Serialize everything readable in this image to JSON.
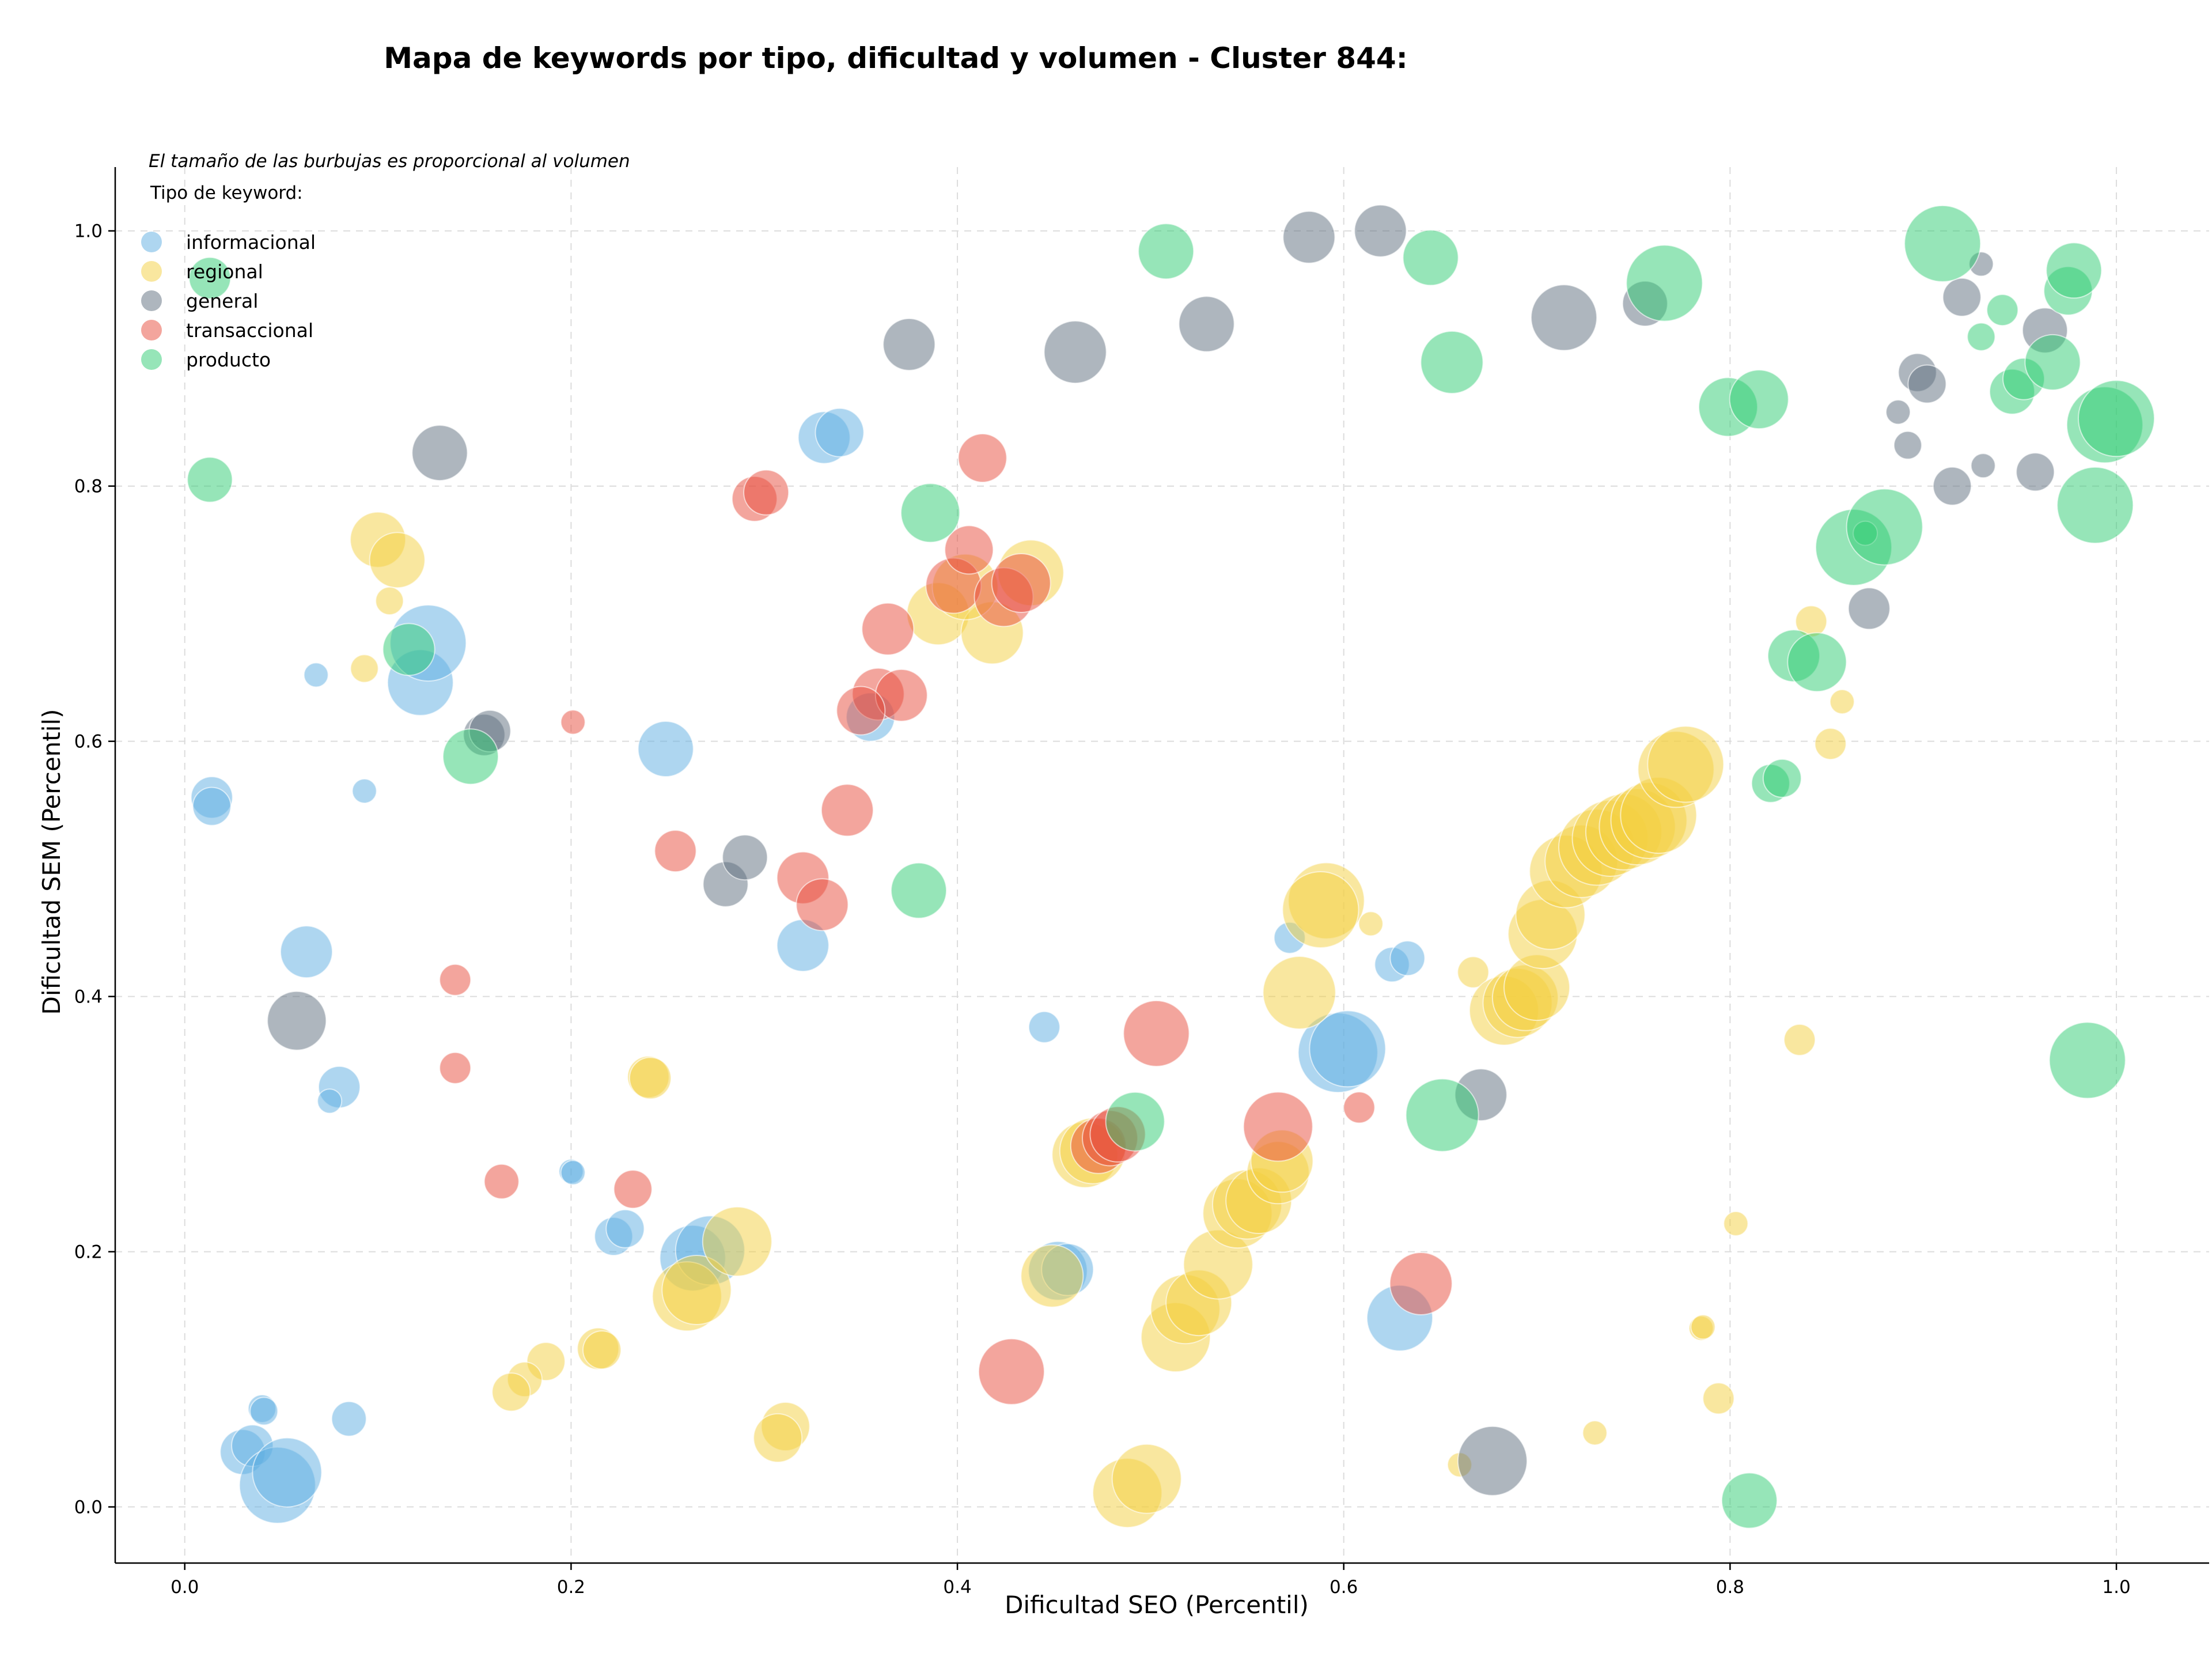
{
  "chart_data": {
    "type": "scatter",
    "title": "Mapa de keywords por tipo, dificultad y volumen - Cluster 844:",
    "xlabel": "Dificultad SEO (Percentil)",
    "ylabel": "Dificultad SEM (Percentil)",
    "xlim": [
      -0.036,
      1.048
    ],
    "ylim": [
      -0.044,
      1.05
    ],
    "xticks": [
      0.0,
      0.2,
      0.4,
      0.6,
      0.8,
      1.0
    ],
    "yticks": [
      0.0,
      0.2,
      0.4,
      0.6,
      0.8,
      1.0
    ],
    "xtick_labels": [
      "0.0",
      "0.2",
      "0.4",
      "0.6",
      "0.8",
      "1.0"
    ],
    "ytick_labels": [
      "0.0",
      "0.2",
      "0.4",
      "0.6",
      "0.8",
      "1.0"
    ],
    "grid": true,
    "annotation": "El tamaño de las burbujas es proporcional al volumen",
    "legend": {
      "title": "Tipo de keyword:",
      "placement": "top-left"
    },
    "series": [
      {
        "name": "informacional",
        "color": "#5dade2",
        "points": [
          [
            0.068,
            0.652,
            7
          ],
          [
            0.093,
            0.561,
            7
          ],
          [
            0.014,
            0.556,
            12
          ],
          [
            0.014,
            0.549,
            11
          ],
          [
            0.063,
            0.435,
            15
          ],
          [
            0.08,
            0.329,
            12
          ],
          [
            0.075,
            0.318,
            7
          ],
          [
            0.04,
            0.077,
            8
          ],
          [
            0.041,
            0.075,
            8
          ],
          [
            0.085,
            0.069,
            10
          ],
          [
            0.03,
            0.043,
            13
          ],
          [
            0.035,
            0.048,
            12
          ],
          [
            0.048,
            0.017,
            22
          ],
          [
            0.053,
            0.027,
            20
          ],
          [
            0.2,
            0.263,
            7
          ],
          [
            0.201,
            0.262,
            7
          ],
          [
            0.222,
            0.212,
            11
          ],
          [
            0.228,
            0.218,
            11
          ],
          [
            0.263,
            0.195,
            19
          ],
          [
            0.272,
            0.201,
            20
          ],
          [
            0.122,
            0.646,
            19
          ],
          [
            0.126,
            0.677,
            22
          ],
          [
            0.249,
            0.594,
            16
          ],
          [
            0.331,
            0.838,
            15
          ],
          [
            0.339,
            0.842,
            14
          ],
          [
            0.355,
            0.619,
            14
          ],
          [
            0.32,
            0.44,
            15
          ],
          [
            0.445,
            0.376,
            9
          ],
          [
            0.452,
            0.185,
            17
          ],
          [
            0.457,
            0.186,
            15
          ],
          [
            0.572,
            0.446,
            9
          ],
          [
            0.597,
            0.356,
            23
          ],
          [
            0.602,
            0.359,
            22
          ],
          [
            0.625,
            0.425,
            10
          ],
          [
            0.633,
            0.43,
            10
          ],
          [
            0.629,
            0.148,
            19
          ]
        ]
      },
      {
        "name": "regional",
        "color": "#f4d03f",
        "points": [
          [
            0.1,
            0.758,
            16
          ],
          [
            0.11,
            0.742,
            16
          ],
          [
            0.106,
            0.71,
            8
          ],
          [
            0.093,
            0.657,
            8
          ],
          [
            0.24,
            0.337,
            12
          ],
          [
            0.241,
            0.336,
            12
          ],
          [
            0.214,
            0.124,
            12
          ],
          [
            0.216,
            0.123,
            11
          ],
          [
            0.187,
            0.114,
            11
          ],
          [
            0.176,
            0.1,
            10
          ],
          [
            0.169,
            0.09,
            11
          ],
          [
            0.26,
            0.165,
            20
          ],
          [
            0.265,
            0.17,
            20
          ],
          [
            0.286,
            0.208,
            20
          ],
          [
            0.311,
            0.063,
            14
          ],
          [
            0.307,
            0.054,
            14
          ],
          [
            0.39,
            0.7,
            18
          ],
          [
            0.418,
            0.685,
            18
          ],
          [
            0.438,
            0.732,
            19
          ],
          [
            0.404,
            0.721,
            19
          ],
          [
            0.466,
            0.276,
            19
          ],
          [
            0.47,
            0.279,
            19
          ],
          [
            0.449,
            0.181,
            18
          ],
          [
            0.488,
            0.011,
            20
          ],
          [
            0.498,
            0.022,
            20
          ],
          [
            0.513,
            0.133,
            20
          ],
          [
            0.518,
            0.155,
            20
          ],
          [
            0.525,
            0.16,
            19
          ],
          [
            0.535,
            0.19,
            20
          ],
          [
            0.545,
            0.23,
            20
          ],
          [
            0.55,
            0.237,
            20
          ],
          [
            0.556,
            0.24,
            19
          ],
          [
            0.566,
            0.262,
            18
          ],
          [
            0.568,
            0.271,
            18
          ],
          [
            0.591,
            0.475,
            22
          ],
          [
            0.588,
            0.468,
            22
          ],
          [
            0.577,
            0.403,
            21
          ],
          [
            0.614,
            0.457,
            7
          ],
          [
            0.667,
            0.419,
            9
          ],
          [
            0.66,
            0.033,
            7
          ],
          [
            0.683,
            0.389,
            20
          ],
          [
            0.69,
            0.395,
            20
          ],
          [
            0.694,
            0.399,
            19
          ],
          [
            0.7,
            0.407,
            19
          ],
          [
            0.703,
            0.449,
            20
          ],
          [
            0.707,
            0.464,
            20
          ],
          [
            0.715,
            0.498,
            21
          ],
          [
            0.723,
            0.506,
            21
          ],
          [
            0.731,
            0.517,
            22
          ],
          [
            0.738,
            0.524,
            22
          ],
          [
            0.745,
            0.529,
            22
          ],
          [
            0.752,
            0.533,
            22
          ],
          [
            0.758,
            0.538,
            22
          ],
          [
            0.763,
            0.542,
            22
          ],
          [
            0.772,
            0.578,
            22
          ],
          [
            0.777,
            0.582,
            22
          ],
          [
            0.73,
            0.058,
            7
          ],
          [
            0.785,
            0.14,
            7
          ],
          [
            0.786,
            0.141,
            7
          ],
          [
            0.794,
            0.085,
            9
          ],
          [
            0.803,
            0.222,
            7
          ],
          [
            0.836,
            0.366,
            9
          ],
          [
            0.842,
            0.694,
            9
          ],
          [
            0.852,
            0.598,
            9
          ],
          [
            0.858,
            0.631,
            7
          ]
        ]
      },
      {
        "name": "general",
        "color": "#5d6d7e",
        "points": [
          [
            0.132,
            0.826,
            16
          ],
          [
            0.155,
            0.605,
            12
          ],
          [
            0.158,
            0.608,
            12
          ],
          [
            0.058,
            0.381,
            17
          ],
          [
            0.28,
            0.488,
            13
          ],
          [
            0.29,
            0.509,
            13
          ],
          [
            0.375,
            0.911,
            15
          ],
          [
            0.461,
            0.905,
            18
          ],
          [
            0.529,
            0.927,
            16
          ],
          [
            0.582,
            0.995,
            15
          ],
          [
            0.619,
            1.0,
            15
          ],
          [
            0.671,
            0.323,
            15
          ],
          [
            0.677,
            0.036,
            20
          ],
          [
            0.714,
            0.932,
            19
          ],
          [
            0.756,
            0.943,
            13
          ],
          [
            0.872,
            0.704,
            12
          ],
          [
            0.887,
            0.858,
            7
          ],
          [
            0.892,
            0.832,
            8
          ],
          [
            0.897,
            0.889,
            11
          ],
          [
            0.902,
            0.88,
            11
          ],
          [
            0.915,
            0.8,
            11
          ],
          [
            0.92,
            0.948,
            11
          ],
          [
            0.93,
            0.974,
            7
          ],
          [
            0.931,
            0.816,
            7
          ],
          [
            0.958,
            0.811,
            11
          ],
          [
            0.963,
            0.922,
            13
          ]
        ]
      },
      {
        "name": "transaccional",
        "color": "#e74c3c",
        "points": [
          [
            0.14,
            0.413,
            9
          ],
          [
            0.14,
            0.344,
            9
          ],
          [
            0.164,
            0.255,
            10
          ],
          [
            0.201,
            0.615,
            7
          ],
          [
            0.232,
            0.249,
            11
          ],
          [
            0.254,
            0.514,
            12
          ],
          [
            0.295,
            0.79,
            13
          ],
          [
            0.301,
            0.795,
            13
          ],
          [
            0.32,
            0.493,
            15
          ],
          [
            0.33,
            0.472,
            15
          ],
          [
            0.343,
            0.546,
            15
          ],
          [
            0.364,
            0.688,
            15
          ],
          [
            0.359,
            0.637,
            15
          ],
          [
            0.371,
            0.636,
            15
          ],
          [
            0.35,
            0.624,
            14
          ],
          [
            0.398,
            0.722,
            16
          ],
          [
            0.406,
            0.75,
            14
          ],
          [
            0.424,
            0.713,
            17
          ],
          [
            0.433,
            0.724,
            17
          ],
          [
            0.413,
            0.822,
            14
          ],
          [
            0.428,
            0.106,
            19
          ],
          [
            0.473,
            0.283,
            16
          ],
          [
            0.479,
            0.289,
            16
          ],
          [
            0.483,
            0.292,
            16
          ],
          [
            0.503,
            0.371,
            19
          ],
          [
            0.566,
            0.298,
            20
          ],
          [
            0.608,
            0.313,
            9
          ],
          [
            0.64,
            0.175,
            18
          ]
        ]
      },
      {
        "name": "producto",
        "color": "#2ecc71",
        "points": [
          [
            0.013,
            0.963,
            12
          ],
          [
            0.013,
            0.805,
            13
          ],
          [
            0.116,
            0.672,
            15
          ],
          [
            0.148,
            0.588,
            16
          ],
          [
            0.38,
            0.483,
            16
          ],
          [
            0.386,
            0.779,
            17
          ],
          [
            0.492,
            0.302,
            17
          ],
          [
            0.508,
            0.984,
            16
          ],
          [
            0.645,
            0.979,
            16
          ],
          [
            0.656,
            0.897,
            18
          ],
          [
            0.651,
            0.307,
            21
          ],
          [
            0.766,
            0.959,
            22
          ],
          [
            0.799,
            0.862,
            17
          ],
          [
            0.815,
            0.868,
            17
          ],
          [
            0.81,
            0.005,
            16
          ],
          [
            0.821,
            0.567,
            11
          ],
          [
            0.827,
            0.571,
            11
          ],
          [
            0.833,
            0.667,
            15
          ],
          [
            0.845,
            0.662,
            17
          ],
          [
            0.864,
            0.752,
            22
          ],
          [
            0.87,
            0.763,
            7
          ],
          [
            0.88,
            0.768,
            22
          ],
          [
            0.91,
            0.99,
            22
          ],
          [
            0.93,
            0.917,
            8
          ],
          [
            0.941,
            0.938,
            9
          ],
          [
            0.946,
            0.874,
            13
          ],
          [
            0.952,
            0.884,
            12
          ],
          [
            0.967,
            0.897,
            16
          ],
          [
            0.975,
            0.953,
            14
          ],
          [
            0.978,
            0.969,
            16
          ],
          [
            0.994,
            0.848,
            22
          ],
          [
            1.0,
            0.853,
            22
          ],
          [
            0.989,
            0.785,
            22
          ],
          [
            0.985,
            0.35,
            22
          ]
        ]
      }
    ]
  }
}
